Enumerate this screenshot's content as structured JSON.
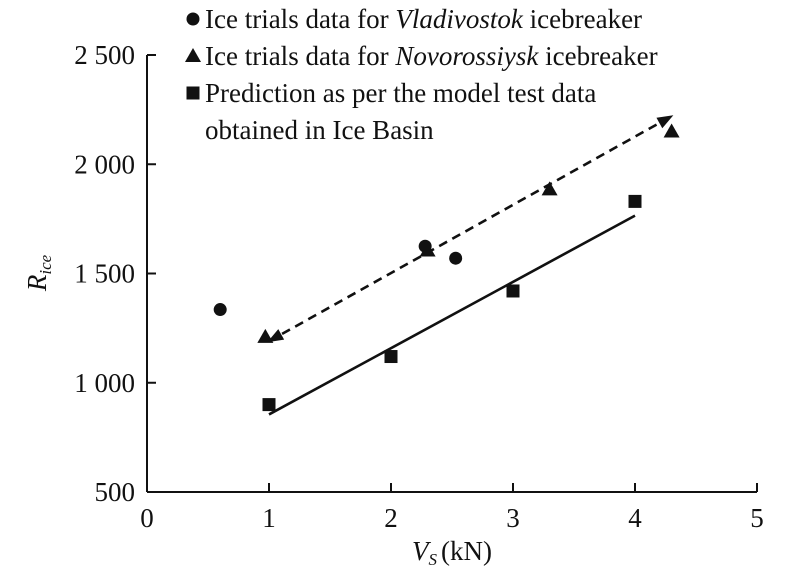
{
  "chart_data": {
    "type": "scatter",
    "title": "",
    "xlabel_var": "V",
    "xlabel_sub": "S",
    "xlabel_unit": "(kN)",
    "ylabel_var": "R",
    "ylabel_sub": "ice",
    "xlim": [
      0,
      5
    ],
    "ylim": [
      500,
      2500
    ],
    "x_ticks": [
      0,
      1,
      2,
      3,
      4,
      5
    ],
    "y_ticks": [
      500,
      1000,
      1500,
      2000,
      2500
    ],
    "x_tick_labels": [
      "0",
      "1",
      "2",
      "3",
      "4",
      "5"
    ],
    "y_tick_labels": [
      "500",
      "1 000",
      "1 500",
      "2 000",
      "2 500"
    ],
    "grid": false,
    "legend_position": "top",
    "legend": [
      {
        "marker": "circle",
        "parts": [
          {
            "text": "Ice trials data for ",
            "italic": false
          },
          {
            "text": "Vladivostok",
            "italic": true
          },
          {
            "text": " icebreaker",
            "italic": false
          }
        ]
      },
      {
        "marker": "triangle",
        "parts": [
          {
            "text": "Ice trials data for ",
            "italic": false
          },
          {
            "text": "Novorossiysk",
            "italic": true
          },
          {
            "text": " icebreaker",
            "italic": false
          }
        ]
      },
      {
        "marker": "square",
        "parts": [
          {
            "text": "Prediction as per the model test data",
            "italic": false
          }
        ],
        "line2": "obtained in Ice Basin"
      }
    ],
    "series": [
      {
        "marker": "circle",
        "points": [
          [
            0.6,
            1335
          ],
          [
            2.28,
            1625
          ],
          [
            2.53,
            1570
          ]
        ]
      },
      {
        "marker": "triangle",
        "points": [
          [
            0.97,
            1210
          ],
          [
            2.3,
            1605
          ],
          [
            3.3,
            1885
          ],
          [
            4.3,
            2150
          ]
        ]
      },
      {
        "marker": "square",
        "points": [
          [
            1.0,
            900
          ],
          [
            2.0,
            1120
          ],
          [
            3.0,
            1420
          ],
          [
            4.0,
            1830
          ]
        ]
      }
    ],
    "trend_lines": [
      {
        "style": "dashed",
        "from": [
          1.0,
          1190
        ],
        "to": [
          4.3,
          2220
        ]
      },
      {
        "style": "solid",
        "from": [
          1.0,
          855
        ],
        "to": [
          4.0,
          1765
        ]
      }
    ],
    "color": "#111111"
  }
}
